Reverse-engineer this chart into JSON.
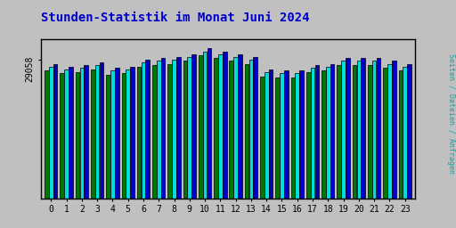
{
  "title": "Stunden-Statistik im Monat Juni 2024",
  "title_color": "#0000cc",
  "title_fontsize": 10,
  "background_color": "#c0c0c0",
  "plot_bg_color": "#c0c0c0",
  "ylabel_right": "Seiten / Dateien / Anfragen",
  "ylabel_right_color": "#00aaaa",
  "ytick_label": "29058",
  "hours": [
    0,
    1,
    2,
    3,
    4,
    5,
    6,
    7,
    8,
    9,
    10,
    11,
    12,
    13,
    14,
    15,
    16,
    17,
    18,
    19,
    20,
    21,
    22,
    23
  ],
  "bar_width": 0.28,
  "bar_colors": [
    "#007700",
    "#00dddd",
    "#0000cc"
  ],
  "bar_edge_color": "#000000",
  "values_pages": [
    92,
    90,
    91,
    93,
    89,
    90,
    95,
    96,
    97,
    99,
    103,
    101,
    99,
    97,
    88,
    87,
    87,
    91,
    92,
    96,
    96,
    96,
    94,
    92
  ],
  "values_files": [
    95,
    93,
    94,
    96,
    92,
    93,
    98,
    99,
    100,
    102,
    106,
    104,
    102,
    100,
    91,
    90,
    90,
    94,
    95,
    99,
    99,
    99,
    97,
    95
  ],
  "values_requests": [
    97,
    95,
    96,
    98,
    94,
    95,
    100,
    101,
    102,
    104,
    108,
    106,
    104,
    102,
    93,
    92,
    92,
    96,
    97,
    101,
    101,
    101,
    99,
    97
  ],
  "ymin": 0,
  "ymax": 115,
  "axis_border_color": "#000000",
  "font_family": "monospace"
}
